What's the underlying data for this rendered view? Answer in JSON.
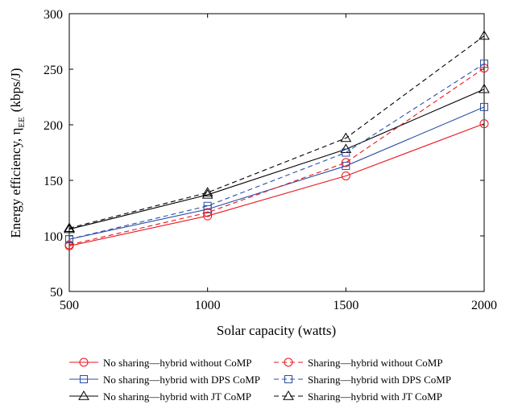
{
  "chart_data": {
    "type": "line",
    "xlabel": "Solar capacity (watts)",
    "ylabel": "Energy efficiency, η",
    "ylabel_sub": "EE",
    "ylabel_unit": "(kbps/J)",
    "x": [
      500,
      1000,
      1500,
      2000
    ],
    "xlim": [
      500,
      2000
    ],
    "ylim": [
      50,
      300
    ],
    "xticks": [
      "500",
      "1000",
      "1500",
      "2000"
    ],
    "yticks": [
      "50",
      "100",
      "150",
      "200",
      "250",
      "300"
    ],
    "grid": false,
    "legend_position": "bottom",
    "series": [
      {
        "name": "No sharing—hybrid without CoMP",
        "values": [
          91,
          118,
          154,
          201
        ],
        "color": "#e8141c",
        "dash": false,
        "marker": "circle"
      },
      {
        "name": "No sharing—hybrid with DPS CoMP",
        "values": [
          97,
          124,
          163,
          216
        ],
        "color": "#2a4ea6",
        "dash": false,
        "marker": "square"
      },
      {
        "name": "No sharing—hybrid with JT CoMP",
        "values": [
          106,
          137,
          178,
          232
        ],
        "color": "#000000",
        "dash": false,
        "marker": "triangle"
      },
      {
        "name": "Sharing—hybrid without CoMP",
        "values": [
          92,
          121,
          166,
          251
        ],
        "color": "#e8141c",
        "dash": true,
        "marker": "circle"
      },
      {
        "name": "Sharing—hybrid with DPS CoMP",
        "values": [
          97,
          127,
          175,
          255
        ],
        "color": "#2a4ea6",
        "dash": true,
        "marker": "square"
      },
      {
        "name": "Sharing—hybrid with JT CoMP",
        "values": [
          107,
          139,
          188,
          280
        ],
        "color": "#000000",
        "dash": true,
        "marker": "triangle"
      }
    ]
  }
}
